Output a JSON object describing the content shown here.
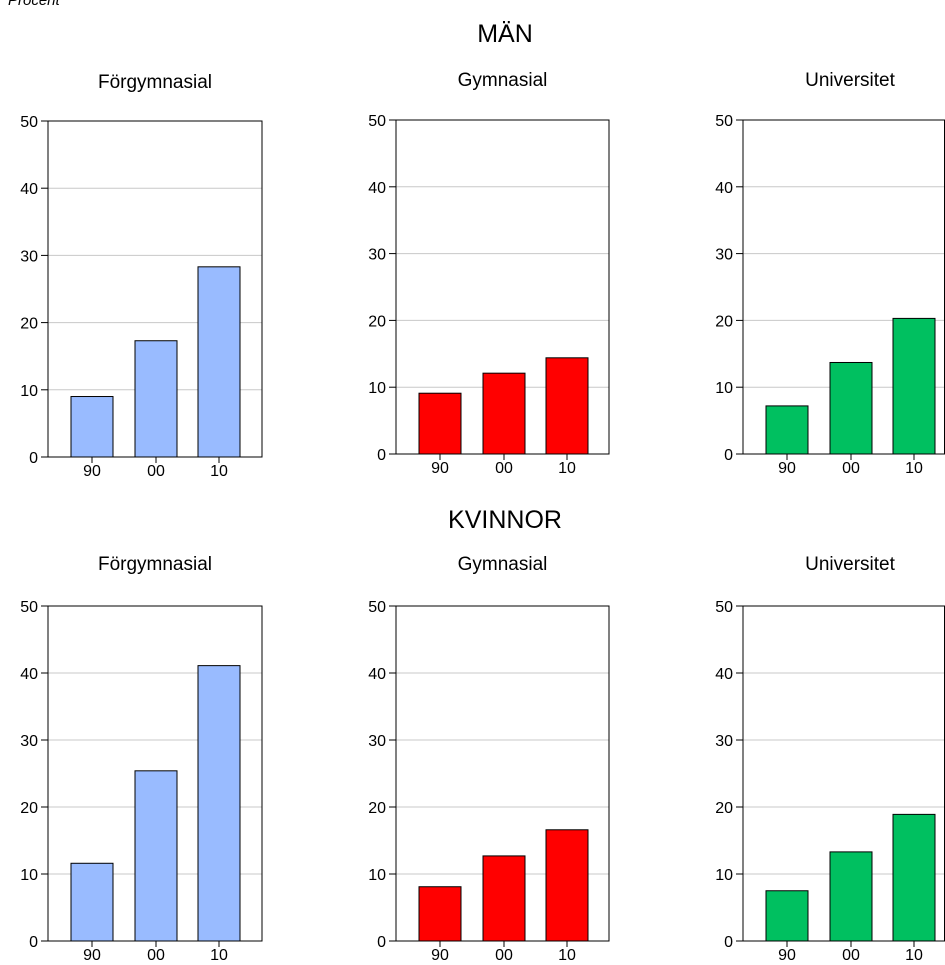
{
  "unit_label": "Procent",
  "colors": {
    "forgymnasial": "#99BBFF",
    "gymnasial": "#FF0000",
    "universitet": "#00C060"
  },
  "chart_data": [
    {
      "type": "bar",
      "group": "MÄN",
      "title": "Förgymnasial",
      "categories": [
        "90",
        "00",
        "10"
      ],
      "values": [
        9.0,
        17.3,
        28.3
      ],
      "ylim": [
        0,
        50
      ],
      "yticks": [
        0,
        10,
        20,
        30,
        40,
        50
      ],
      "grid": true,
      "color": "#99BBFF"
    },
    {
      "type": "bar",
      "group": "MÄN",
      "title": "Gymnasial",
      "categories": [
        "90",
        "00",
        "10"
      ],
      "values": [
        9.1,
        12.1,
        14.4
      ],
      "ylim": [
        0,
        50
      ],
      "yticks": [
        0,
        10,
        20,
        30,
        40,
        50
      ],
      "grid": true,
      "color": "#FF0000"
    },
    {
      "type": "bar",
      "group": "MÄN",
      "title": "Universitet",
      "categories": [
        "90",
        "00",
        "10"
      ],
      "values": [
        7.2,
        13.7,
        20.3
      ],
      "ylim": [
        0,
        50
      ],
      "yticks": [
        0,
        10,
        20,
        30,
        40,
        50
      ],
      "grid": true,
      "color": "#00C060"
    },
    {
      "type": "bar",
      "group": "KVINNOR",
      "title": "Förgymnasial",
      "categories": [
        "90",
        "00",
        "10"
      ],
      "values": [
        11.6,
        25.4,
        41.1
      ],
      "ylim": [
        0,
        50
      ],
      "yticks": [
        0,
        10,
        20,
        30,
        40,
        50
      ],
      "grid": true,
      "color": "#99BBFF"
    },
    {
      "type": "bar",
      "group": "KVINNOR",
      "title": "Gymnasial",
      "categories": [
        "90",
        "00",
        "10"
      ],
      "values": [
        8.1,
        12.7,
        16.6
      ],
      "ylim": [
        0,
        50
      ],
      "yticks": [
        0,
        10,
        20,
        30,
        40,
        50
      ],
      "grid": true,
      "color": "#FF0000"
    },
    {
      "type": "bar",
      "group": "KVINNOR",
      "title": "Universitet",
      "categories": [
        "90",
        "00",
        "10"
      ],
      "values": [
        7.5,
        13.3,
        18.9
      ],
      "ylim": [
        0,
        50
      ],
      "yticks": [
        0,
        10,
        20,
        30,
        40,
        50
      ],
      "grid": true,
      "color": "#00C060"
    }
  ],
  "groups": [
    {
      "title": "MÄN"
    },
    {
      "title": "KVINNOR"
    }
  ]
}
